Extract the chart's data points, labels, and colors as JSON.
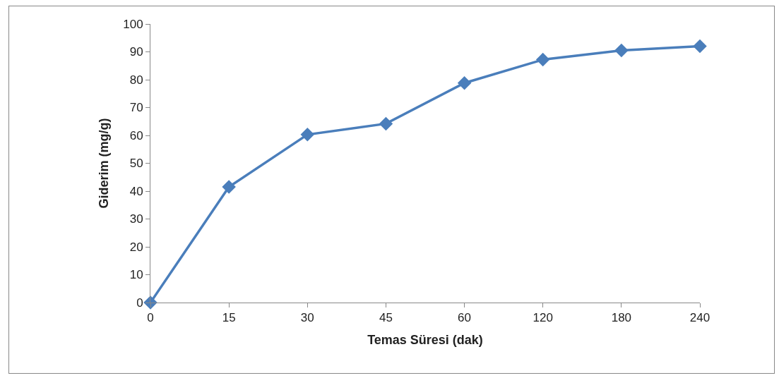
{
  "chart_data": {
    "type": "line",
    "xlabel": "Temas Süresi (dak)",
    "ylabel": "Giderim (mg/g)",
    "categories": [
      "0",
      "15",
      "30",
      "45",
      "60",
      "120",
      "180",
      "240"
    ],
    "series": [
      {
        "color": "#4a7ebb",
        "values": [
          0,
          41.5,
          60.3,
          64.2,
          78.8,
          87.2,
          90.5,
          92.0
        ]
      }
    ],
    "ylim": [
      0,
      100
    ],
    "yticks": [
      0,
      10,
      20,
      30,
      40,
      50,
      60,
      70,
      80,
      90,
      100
    ],
    "grid": false,
    "marker": "diamond",
    "line_style": "solid"
  }
}
